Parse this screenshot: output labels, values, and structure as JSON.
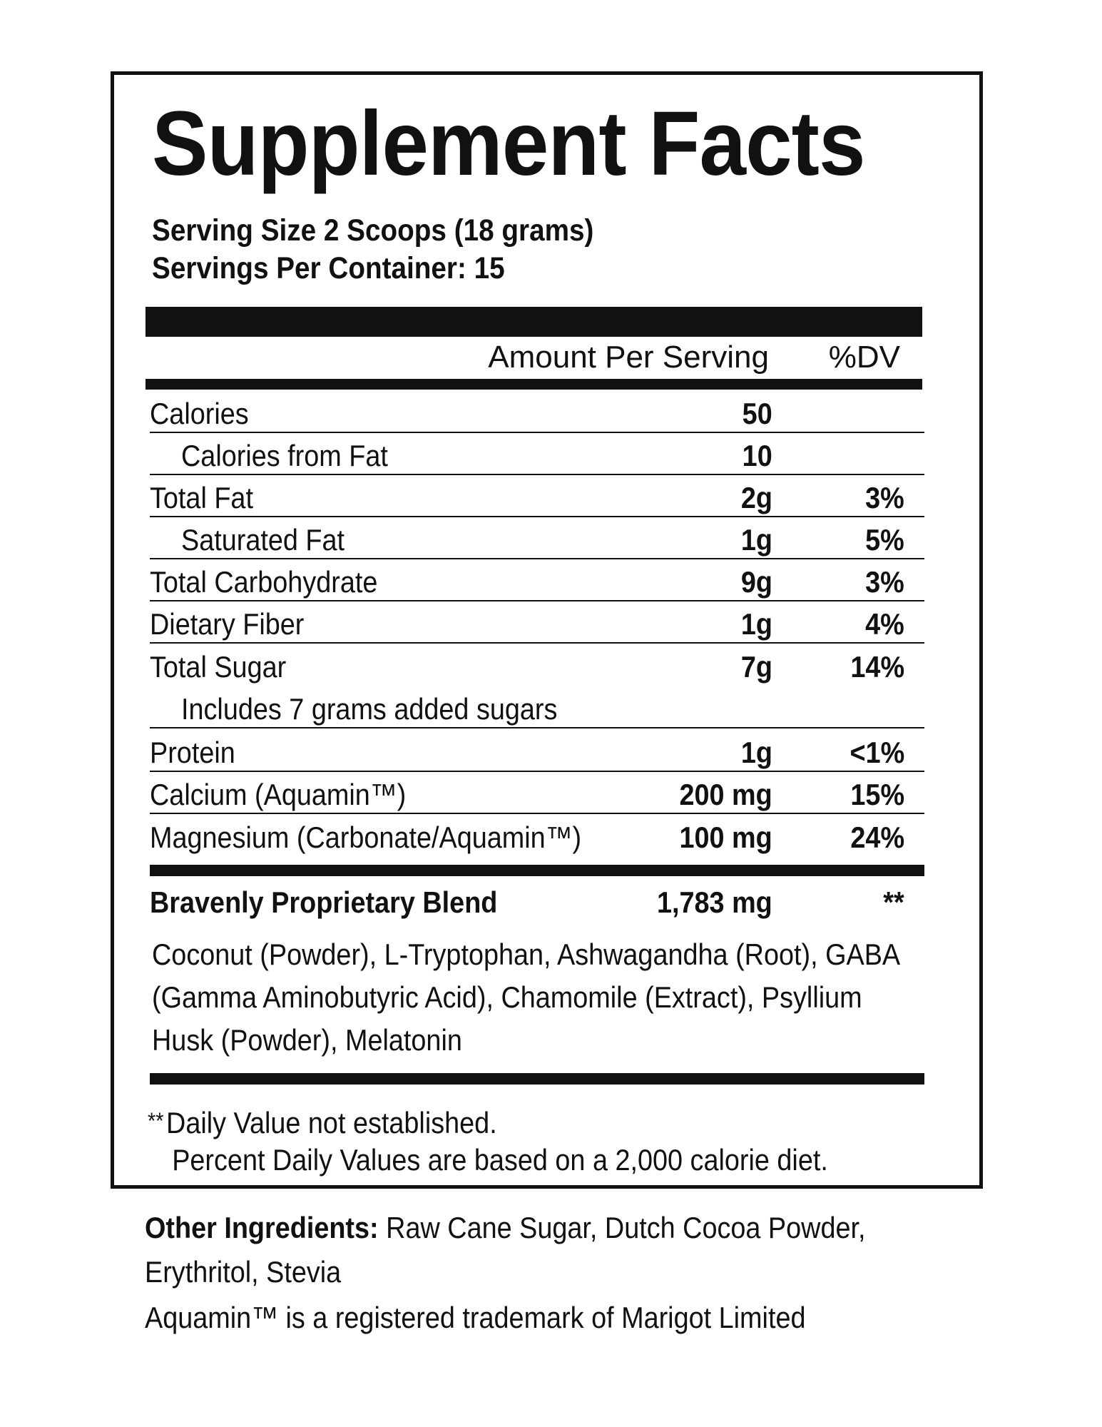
{
  "title": "Supplement Facts",
  "serving_size": "Serving Size 2 Scoops (18 grams)",
  "servings_per_container": "Servings Per Container: 15",
  "header": {
    "amount": "Amount Per Serving",
    "dv": "%DV"
  },
  "nutrients": [
    {
      "label": "Calories",
      "amount": "50",
      "dv": ""
    },
    {
      "label": "Calories from Fat",
      "amount": "10",
      "dv": ""
    },
    {
      "label": "Total Fat",
      "amount": "2g",
      "dv": "3%"
    },
    {
      "label": "Saturated Fat",
      "amount": "1g",
      "dv": "5%"
    },
    {
      "label": "Total Carbohydrate",
      "amount": "9g",
      "dv": "3%"
    },
    {
      "label": "Dietary Fiber",
      "amount": "1g",
      "dv": "4%"
    },
    {
      "label": "Total Sugar",
      "amount": "7g",
      "dv": "14%"
    },
    {
      "label": "Includes 7 grams added sugars",
      "amount": "",
      "dv": ""
    },
    {
      "label": "Protein",
      "amount": "1g",
      "dv": "<1%"
    },
    {
      "label": "Calcium (Aquamin™)",
      "amount": "200 mg",
      "dv": "15%"
    },
    {
      "label": "Magnesium (Carbonate/Aquamin™)",
      "amount": "100 mg",
      "dv": "24%"
    }
  ],
  "blend": {
    "label": "Bravenly Proprietary Blend",
    "amount": "1,783 mg",
    "dv": "**",
    "ingredients": "Coconut (Powder), L-Tryptophan, Ashwagandha (Root), GABA (Gamma Aminobutyric Acid), Chamomile (Extract), Psyllium Husk (Powder), Melatonin"
  },
  "footnote": {
    "marker": "**",
    "line1": "Daily Value not established.",
    "line2": "Percent Daily Values are based on a 2,000 calorie diet."
  },
  "other_ingredients": {
    "label": "Other Ingredients:",
    "text": " Raw Cane Sugar, Dutch Cocoa Powder, Erythritol, Stevia"
  },
  "trademark_note": "Aquamin™ is a registered trademark of Marigot Limited"
}
